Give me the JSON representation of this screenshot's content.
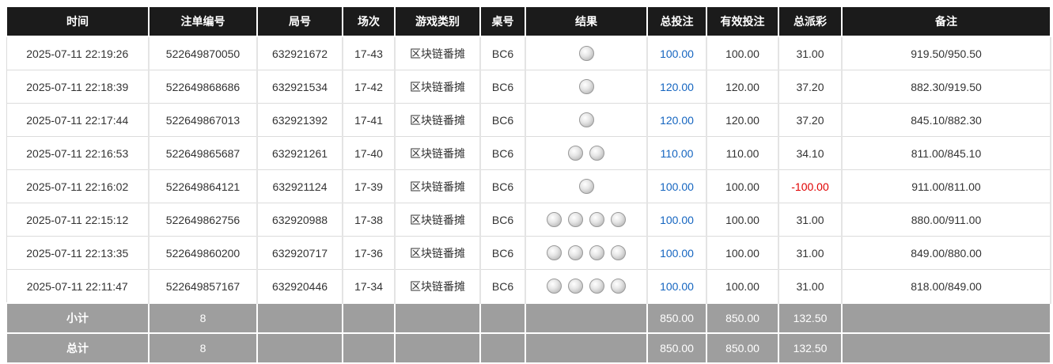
{
  "header": [
    "时间",
    "注单编号",
    "局号",
    "场次",
    "游戏类别",
    "桌号",
    "结果",
    "总投注",
    "有效投注",
    "总派彩",
    "备注"
  ],
  "rows": [
    [
      "2025-07-11 22:19:26",
      "522649870050",
      "632921672",
      "17-43",
      "区块链番摊",
      "BC6",
      1,
      "100.00",
      "100.00",
      "31.00",
      "919.50/950.50"
    ],
    [
      "2025-07-11 22:18:39",
      "522649868686",
      "632921534",
      "17-42",
      "区块链番摊",
      "BC6",
      1,
      "120.00",
      "120.00",
      "37.20",
      "882.30/919.50"
    ],
    [
      "2025-07-11 22:17:44",
      "522649867013",
      "632921392",
      "17-41",
      "区块链番摊",
      "BC6",
      1,
      "120.00",
      "120.00",
      "37.20",
      "845.10/882.30"
    ],
    [
      "2025-07-11 22:16:53",
      "522649865687",
      "632921261",
      "17-40",
      "区块链番摊",
      "BC6",
      2,
      "110.00",
      "110.00",
      "34.10",
      "811.00/845.10"
    ],
    [
      "2025-07-11 22:16:02",
      "522649864121",
      "632921124",
      "17-39",
      "区块链番摊",
      "BC6",
      1,
      "100.00",
      "100.00",
      "-100.00",
      "911.00/811.00"
    ],
    [
      "2025-07-11 22:15:12",
      "522649862756",
      "632920988",
      "17-38",
      "区块链番摊",
      "BC6",
      4,
      "100.00",
      "100.00",
      "31.00",
      "880.00/911.00"
    ],
    [
      "2025-07-11 22:13:35",
      "522649860200",
      "632920717",
      "17-36",
      "区块链番摊",
      "BC6",
      4,
      "100.00",
      "100.00",
      "31.00",
      "849.00/880.00"
    ],
    [
      "2025-07-11 22:11:47",
      "522649857167",
      "632920446",
      "17-34",
      "区块链番摊",
      "BC6",
      4,
      "100.00",
      "100.00",
      "31.00",
      "818.00/849.00"
    ]
  ],
  "summary": [
    {
      "label": "小计",
      "count": 8,
      "total_bet": "850.00",
      "valid_bet": "850.00",
      "payout": "132.50"
    },
    {
      "label": "总计",
      "count": 8,
      "total_bet": "850.00",
      "valid_bet": "850.00",
      "payout": "132.50"
    }
  ]
}
